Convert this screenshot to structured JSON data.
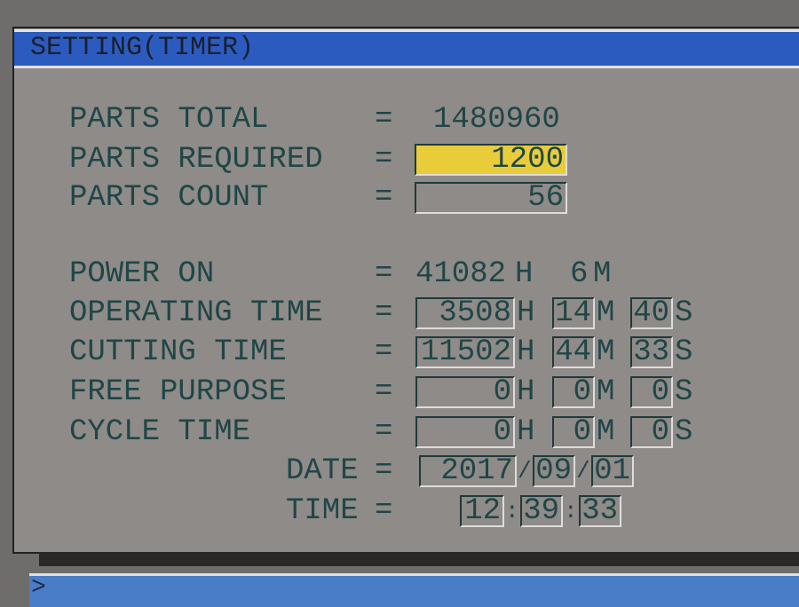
{
  "title": "SETTING(TIMER)",
  "prompt": ">",
  "colors": {
    "title_bar": "#2c5bc0",
    "active_field": "#e8cc3a",
    "text": "#1f4646",
    "panel": "#8f8b89"
  },
  "parts": {
    "total": {
      "label": "PARTS TOTAL",
      "eq": "=",
      "value": "1480960"
    },
    "required": {
      "label": "PARTS REQUIRED",
      "eq": "=",
      "value": "1200"
    },
    "count": {
      "label": "PARTS COUNT",
      "eq": "=",
      "value": "56"
    }
  },
  "times": {
    "power_on": {
      "label": "POWER ON",
      "eq": "=",
      "hours": "41082",
      "h": "H",
      "minutes": "6",
      "m": "M"
    },
    "operating": {
      "label": "OPERATING TIME",
      "eq": "=",
      "hours": "3508",
      "h": "H",
      "minutes": "14",
      "m": "M",
      "seconds": "40",
      "s": "S"
    },
    "cutting": {
      "label": "CUTTING TIME",
      "eq": "=",
      "hours": "11502",
      "h": "H",
      "minutes": "44",
      "m": "M",
      "seconds": "33",
      "s": "S"
    },
    "free": {
      "label": "FREE PURPOSE",
      "eq": "=",
      "hours": "0",
      "h": "H",
      "minutes": "0",
      "m": "M",
      "seconds": "0",
      "s": "S"
    },
    "cycle": {
      "label": "CYCLE TIME",
      "eq": "=",
      "hours": "0",
      "h": "H",
      "minutes": "0",
      "m": "M",
      "seconds": "0",
      "s": "S"
    }
  },
  "date": {
    "label": "DATE",
    "eq": "=",
    "year": "2017",
    "month": "09",
    "day": "01",
    "sep": "/"
  },
  "time": {
    "label": "TIME",
    "eq": "=",
    "hour": "12",
    "minute": "39",
    "second": "33",
    "sep": ":"
  }
}
